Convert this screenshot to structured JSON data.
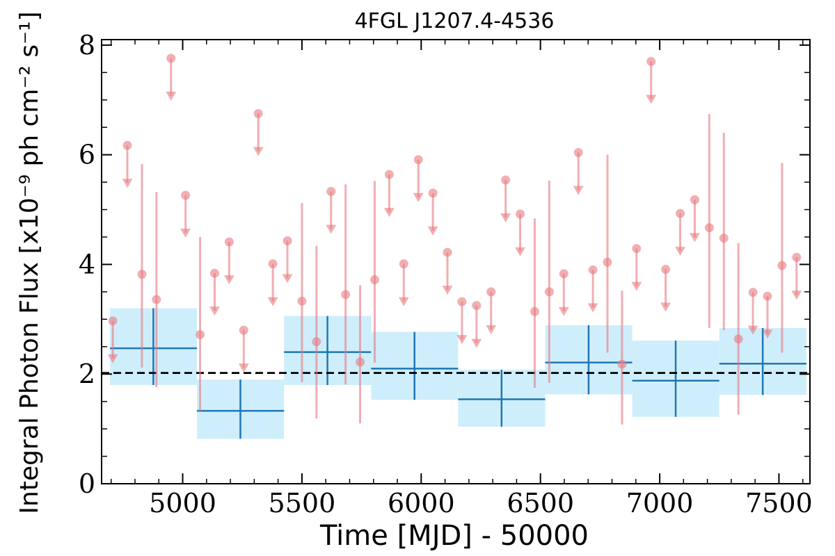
{
  "chart_data": {
    "type": "scatter",
    "title": "4FGL J1207.4-4536",
    "xlabel": "Time [MJD] - 50000",
    "ylabel": "Integral Photon Flux [x10⁻⁹ ph cm⁻² s⁻¹]",
    "xlim": [
      4660,
      7630
    ],
    "ylim": [
      0,
      8.1
    ],
    "xticks": [
      5000,
      5500,
      6000,
      6500,
      7000,
      7500
    ],
    "yticks": [
      0,
      2,
      4,
      6,
      8
    ],
    "reference_level": 2.02,
    "colors": {
      "bins_line": "#1f77b4",
      "bins_fill": "#cfeefc",
      "points": "#e8797f",
      "reference": "#000000"
    },
    "binned": [
      {
        "x0": 4695,
        "x1": 5060,
        "x": 4877,
        "y": 2.47,
        "ylo": 1.8,
        "yhi": 3.2
      },
      {
        "x0": 5060,
        "x1": 5425,
        "x": 5242,
        "y": 1.33,
        "ylo": 0.82,
        "yhi": 1.9
      },
      {
        "x0": 5425,
        "x1": 5790,
        "x": 5607,
        "y": 2.4,
        "ylo": 1.8,
        "yhi": 3.06
      },
      {
        "x0": 5790,
        "x1": 6155,
        "x": 5972,
        "y": 2.1,
        "ylo": 1.53,
        "yhi": 2.77
      },
      {
        "x0": 6155,
        "x1": 6520,
        "x": 6337,
        "y": 1.54,
        "ylo": 1.04,
        "yhi": 2.08
      },
      {
        "x0": 6520,
        "x1": 6885,
        "x": 6702,
        "y": 2.21,
        "ylo": 1.63,
        "yhi": 2.89
      },
      {
        "x0": 6885,
        "x1": 7250,
        "x": 7067,
        "y": 1.88,
        "ylo": 1.22,
        "yhi": 2.61
      },
      {
        "x0": 7250,
        "x1": 7615,
        "x": 7432,
        "y": 2.19,
        "ylo": 1.62,
        "yhi": 2.84
      }
    ],
    "upper_limits": [
      {
        "x": 4707,
        "y": 2.97
      },
      {
        "x": 4768,
        "y": 6.17
      },
      {
        "x": 4951,
        "y": 7.76
      },
      {
        "x": 5012,
        "y": 5.26
      },
      {
        "x": 5134,
        "y": 3.84
      },
      {
        "x": 5195,
        "y": 4.41
      },
      {
        "x": 5256,
        "y": 2.8
      },
      {
        "x": 5317,
        "y": 6.75
      },
      {
        "x": 5378,
        "y": 4.01
      },
      {
        "x": 5439,
        "y": 4.43
      },
      {
        "x": 5622,
        "y": 5.33
      },
      {
        "x": 5866,
        "y": 5.64
      },
      {
        "x": 5927,
        "y": 4.01
      },
      {
        "x": 5988,
        "y": 5.91
      },
      {
        "x": 6049,
        "y": 5.3
      },
      {
        "x": 6110,
        "y": 4.22
      },
      {
        "x": 6171,
        "y": 3.32
      },
      {
        "x": 6232,
        "y": 3.25
      },
      {
        "x": 6293,
        "y": 3.5
      },
      {
        "x": 6354,
        "y": 5.54
      },
      {
        "x": 6415,
        "y": 4.92
      },
      {
        "x": 6598,
        "y": 3.83
      },
      {
        "x": 6659,
        "y": 6.04
      },
      {
        "x": 6720,
        "y": 3.9
      },
      {
        "x": 6903,
        "y": 4.29
      },
      {
        "x": 6964,
        "y": 7.7
      },
      {
        "x": 7025,
        "y": 3.91
      },
      {
        "x": 7086,
        "y": 4.93
      },
      {
        "x": 7147,
        "y": 5.18
      },
      {
        "x": 7391,
        "y": 3.49
      },
      {
        "x": 7452,
        "y": 3.42
      },
      {
        "x": 7574,
        "y": 4.13
      }
    ],
    "detections": [
      {
        "x": 4829,
        "y": 3.82,
        "ylo": 2.12,
        "yhi": 5.83
      },
      {
        "x": 4890,
        "y": 3.36,
        "ylo": 1.76,
        "yhi": 5.32
      },
      {
        "x": 5073,
        "y": 2.72,
        "ylo": 1.33,
        "yhi": 4.5
      },
      {
        "x": 5500,
        "y": 3.33,
        "ylo": 1.85,
        "yhi": 5.12
      },
      {
        "x": 5561,
        "y": 2.59,
        "ylo": 1.19,
        "yhi": 4.34
      },
      {
        "x": 5683,
        "y": 3.45,
        "ylo": 1.81,
        "yhi": 5.46
      },
      {
        "x": 5744,
        "y": 2.22,
        "ylo": 1.1,
        "yhi": 3.62
      },
      {
        "x": 5805,
        "y": 3.72,
        "ylo": 2.21,
        "yhi": 5.52
      },
      {
        "x": 6476,
        "y": 3.14,
        "ylo": 1.75,
        "yhi": 4.84
      },
      {
        "x": 6537,
        "y": 3.5,
        "ylo": 1.84,
        "yhi": 5.53
      },
      {
        "x": 6781,
        "y": 4.04,
        "ylo": 2.39,
        "yhi": 6.0
      },
      {
        "x": 6842,
        "y": 2.18,
        "ylo": 1.08,
        "yhi": 3.52
      },
      {
        "x": 7208,
        "y": 4.67,
        "ylo": 2.84,
        "yhi": 6.74
      },
      {
        "x": 7269,
        "y": 4.48,
        "ylo": 2.8,
        "yhi": 6.4
      },
      {
        "x": 7330,
        "y": 2.64,
        "ylo": 1.26,
        "yhi": 4.39
      },
      {
        "x": 7513,
        "y": 3.98,
        "ylo": 2.39,
        "yhi": 5.85
      }
    ]
  }
}
